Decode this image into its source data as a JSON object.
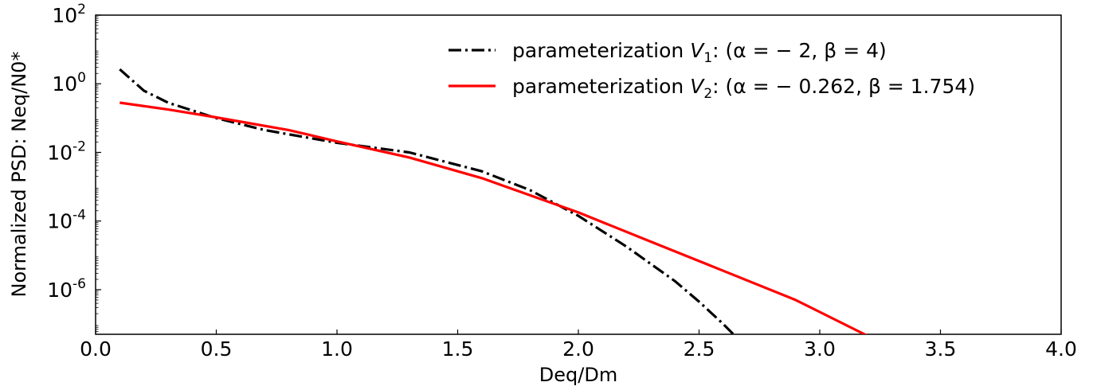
{
  "chart_data": {
    "type": "line",
    "xlabel": "Deq/Dm",
    "ylabel": "Normalized PSD: Neq/N0*",
    "xlim": [
      0.0,
      4.0
    ],
    "ylim_log10": [
      -7.3,
      2
    ],
    "yscale": "log",
    "grid": false,
    "legend_position": "top-right",
    "x_ticks": [
      "0.0",
      "0.5",
      "1.0",
      "1.5",
      "2.0",
      "2.5",
      "3.0",
      "3.5",
      "4.0"
    ],
    "y_ticks": [
      {
        "base": "10",
        "exp": "2"
      },
      {
        "base": "10",
        "exp": "0"
      },
      {
        "base": "10",
        "exp": "-2"
      },
      {
        "base": "10",
        "exp": "-4"
      },
      {
        "base": "10",
        "exp": "-6"
      }
    ],
    "series": [
      {
        "legend_prefix": "parameterization ",
        "legend_sym": "V",
        "legend_sub": "1",
        "legend_rest": ": (α = − 2, β = 4)",
        "color": "#000000",
        "style": "dashdot",
        "x": [
          0.1,
          0.2,
          0.3,
          0.5,
          0.7,
          1.0,
          1.3,
          1.6,
          1.8,
          2.0,
          2.2,
          2.4,
          2.5,
          2.6,
          2.65
        ],
        "log10y": [
          0.42,
          -0.2,
          -0.55,
          -1.0,
          -1.35,
          -1.72,
          -2.0,
          -2.55,
          -3.1,
          -3.85,
          -4.75,
          -5.75,
          -6.35,
          -7.0,
          -7.35
        ]
      },
      {
        "legend_prefix": "parameterization ",
        "legend_sym": "V",
        "legend_sub": "2",
        "legend_rest": ": (α = − 0.262, β = 1.754)",
        "color": "#ff0000",
        "style": "solid",
        "x": [
          0.1,
          0.3,
          0.5,
          0.8,
          1.0,
          1.3,
          1.6,
          2.0,
          2.3,
          2.6,
          2.9,
          3.2
        ],
        "log10y": [
          -0.55,
          -0.75,
          -0.98,
          -1.35,
          -1.68,
          -2.15,
          -2.75,
          -3.75,
          -4.6,
          -5.45,
          -6.3,
          -7.35
        ]
      }
    ]
  }
}
